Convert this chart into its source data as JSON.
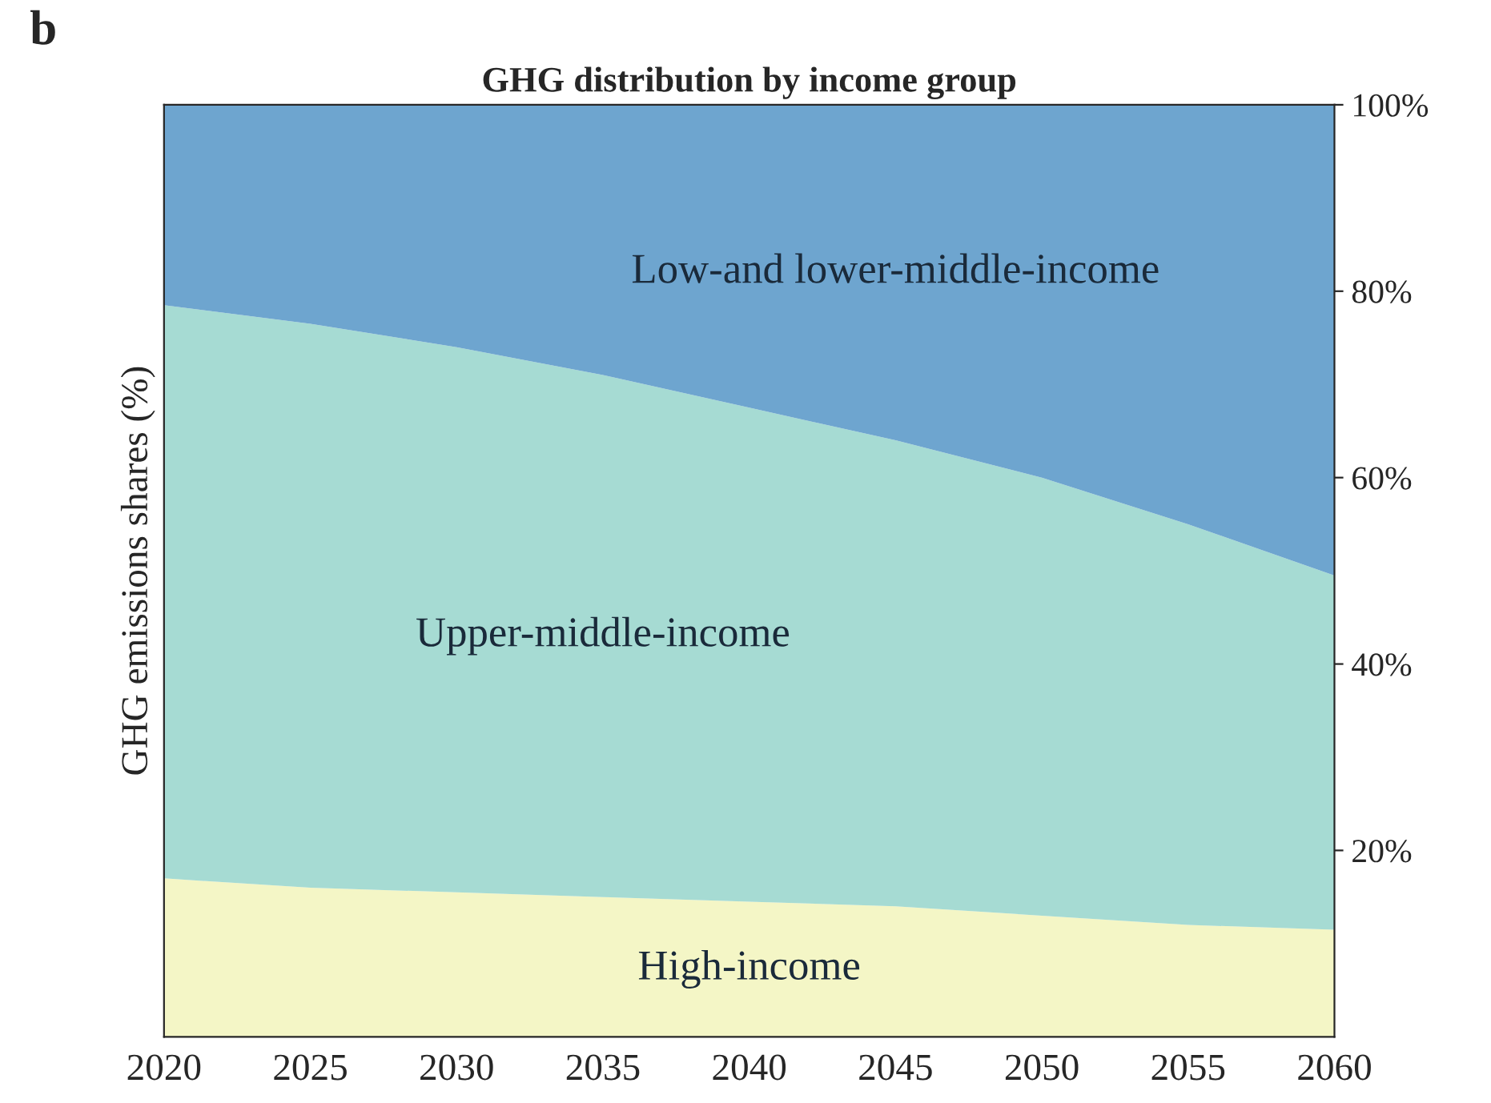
{
  "chart_data": {
    "type": "area",
    "stacked": true,
    "title": "GHG distribution by income group",
    "ylabel": "GHG emissions shares (%)",
    "annotations": [
      "b"
    ],
    "x": [
      2020,
      2025,
      2030,
      2035,
      2040,
      2045,
      2050,
      2055,
      2060
    ],
    "series": [
      {
        "name": "High-income",
        "color": "#f4f6c6",
        "values": [
          17,
          16,
          15.5,
          15,
          14.5,
          14,
          13,
          12,
          11.5
        ]
      },
      {
        "name": "Upper-middle-income",
        "color": "#a6dbd3",
        "values": [
          61.5,
          60.5,
          58.5,
          56,
          53,
          50,
          47,
          43,
          38
        ]
      },
      {
        "name": "Low-and lower-middle-income",
        "color": "#6ea5cf",
        "values": [
          21.5,
          23.5,
          26,
          29,
          32.5,
          36,
          40,
          45,
          50.5
        ]
      }
    ],
    "xlim": [
      2020,
      2060
    ],
    "ylim": [
      0,
      100
    ],
    "xticks": [
      2020,
      2025,
      2030,
      2035,
      2040,
      2045,
      2050,
      2055,
      2060
    ],
    "yticks": [
      {
        "value": 20,
        "label": "20%"
      },
      {
        "value": 40,
        "label": "40%"
      },
      {
        "value": 60,
        "label": "60%"
      },
      {
        "value": 80,
        "label": "80%"
      },
      {
        "value": 100,
        "label": "100%"
      }
    ],
    "grid": false,
    "legend": false
  }
}
